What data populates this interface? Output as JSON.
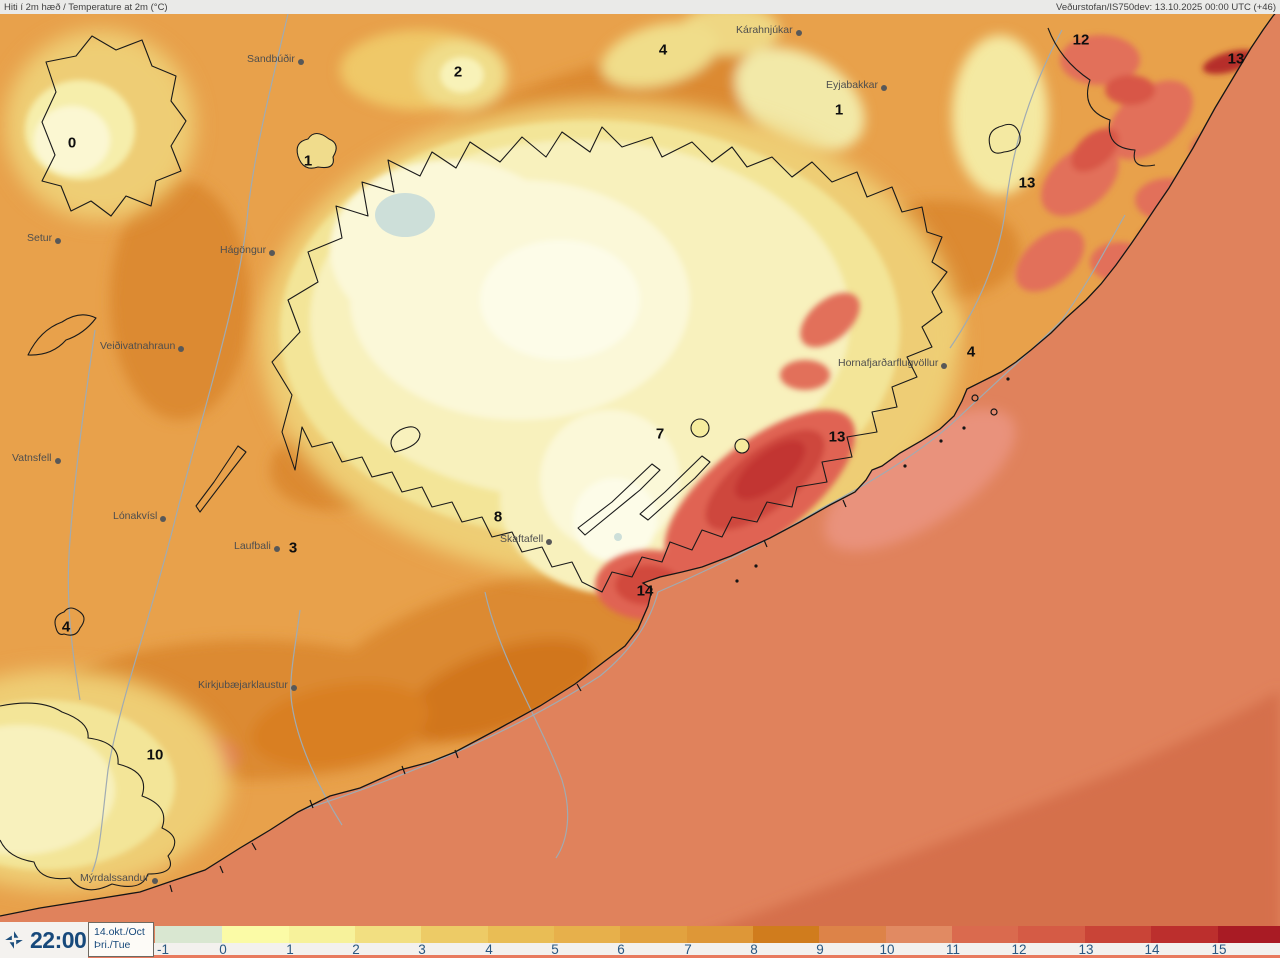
{
  "header": {
    "title_left": "Hiti í 2m hæð / Temperature at 2m (°C)",
    "title_right": "Veðurstofan/IS750dev: 13.10.2025 00:00 UTC (+46)"
  },
  "timebar": {
    "time": "22:00",
    "date_top": "14.okt./Oct",
    "date_bottom": "Þri./Tue"
  },
  "scale": {
    "ticks": [
      "-1",
      "0",
      "1",
      "2",
      "3",
      "4",
      "5",
      "6",
      "7",
      "8",
      "9",
      "10",
      "11",
      "12",
      "13",
      "14",
      "15"
    ],
    "colors": [
      "#d9e7d1",
      "#fbfba6",
      "#f7f29b",
      "#f2df81",
      "#edcb66",
      "#e9bd55",
      "#e7b04b",
      "#e2a23f",
      "#de9737",
      "#d07c1d",
      "#dd8348",
      "#e18a62",
      "#da6a4e",
      "#d55b45",
      "#c94437",
      "#bc2f2d",
      "#a91b24"
    ]
  },
  "map": {
    "colors": {
      "land_base": "#e8a14b",
      "sea": "#e0825c",
      "sea_dark": "#d56f4c",
      "glacier_core": "#fbf8d8",
      "glacier_light": "#f8f1bd",
      "lake": "#cddfd9",
      "hotspot_red": "#c23631",
      "coast_line": "#1a1a1a",
      "river_line": "#a0abb2"
    },
    "places": [
      {
        "name": "Sandbúðir"
      },
      {
        "name": "Kárahnjúkar"
      },
      {
        "name": "Eyjabakkar"
      },
      {
        "name": "Setur"
      },
      {
        "name": "Hágöngur"
      },
      {
        "name": "Veiðivatnahraun"
      },
      {
        "name": "Vatnsfell"
      },
      {
        "name": "Lónakvísl"
      },
      {
        "name": "Laufbali"
      },
      {
        "name": "Skaftafell"
      },
      {
        "name": "Kirkjubæjarklaustur"
      },
      {
        "name": "Mýrdalssandur"
      },
      {
        "name": "Hornafjarðarflugvöllur"
      }
    ],
    "temps": [
      {
        "value": "0"
      },
      {
        "value": "1"
      },
      {
        "value": "2"
      },
      {
        "value": "4"
      },
      {
        "value": "1"
      },
      {
        "value": "12"
      },
      {
        "value": "13"
      },
      {
        "value": "13"
      },
      {
        "value": "4"
      },
      {
        "value": "13"
      },
      {
        "value": "7"
      },
      {
        "value": "8"
      },
      {
        "value": "3"
      },
      {
        "value": "14"
      },
      {
        "value": "4"
      },
      {
        "value": "10"
      }
    ]
  }
}
